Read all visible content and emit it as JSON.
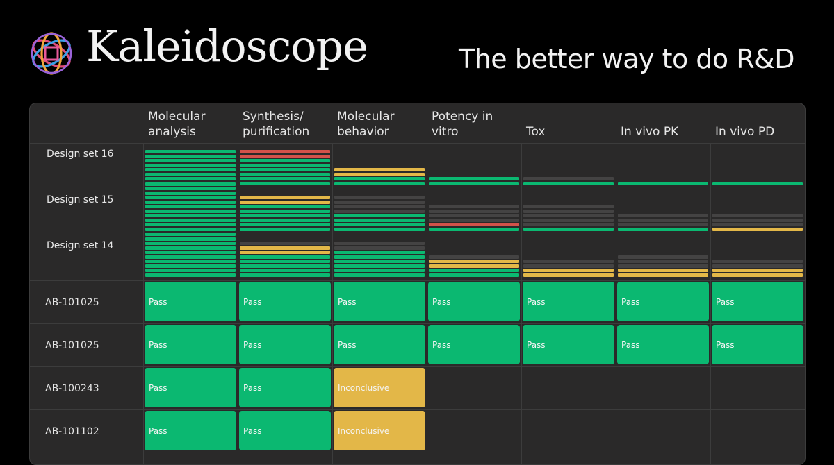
{
  "brand": {
    "name": "Kaleidoscope",
    "tagline": "The better way to do R&D",
    "logo_icon": "kaleidoscope-logo-icon"
  },
  "colors": {
    "pass": "#0bb871",
    "inconclusive": "#e3b748",
    "fail": "#d2524a",
    "pending": "#444343"
  },
  "columns": [
    "Molecular\nanalysis",
    "Synthesis/\npurification",
    "Molecular\nbehavior",
    "Potency in\nvitro",
    "Tox",
    "In vivo PK",
    "In vivo PD"
  ],
  "design_sets": [
    {
      "label": "Design set 16",
      "columns": [
        [
          "g",
          "g",
          "g",
          "g",
          "g",
          "g",
          "g",
          "g"
        ],
        [
          "r",
          "r",
          "g",
          "g",
          "g",
          "g",
          "g",
          "g"
        ],
        [
          "y",
          "y",
          "g",
          "g"
        ],
        [
          "g",
          "g"
        ],
        [
          "d",
          "g"
        ],
        [
          "g"
        ],
        [
          "g"
        ]
      ]
    },
    {
      "label": "Design set 15",
      "columns": [
        [
          "g",
          "g",
          "g",
          "g",
          "g",
          "g",
          "g",
          "g",
          "g",
          "g",
          "g"
        ],
        [
          "y",
          "y",
          "g",
          "g",
          "g",
          "g",
          "g",
          "g"
        ],
        [
          "d",
          "d",
          "d",
          "d",
          "g",
          "g",
          "g",
          "g"
        ],
        [
          "d",
          "d",
          "d",
          "d",
          "r",
          "g"
        ],
        [
          "d",
          "d",
          "d",
          "d",
          "d",
          "g"
        ],
        [
          "d",
          "d",
          "d",
          "g"
        ],
        [
          "d",
          "d",
          "d",
          "y"
        ]
      ]
    },
    {
      "label": "Design set 14",
      "columns": [
        [
          "g",
          "g",
          "g",
          "g",
          "g",
          "g",
          "g",
          "g",
          "g",
          "g"
        ],
        [
          "d",
          "y",
          "y",
          "g",
          "g",
          "g",
          "g",
          "g"
        ],
        [
          "d",
          "d",
          "g",
          "g",
          "g",
          "g",
          "g",
          "g"
        ],
        [
          "d",
          "y",
          "y",
          "g",
          "g"
        ],
        [
          "d",
          "d",
          "y",
          "y"
        ],
        [
          "d",
          "d",
          "d",
          "y",
          "y"
        ],
        [
          "d",
          "d",
          "y",
          "y"
        ]
      ]
    }
  ],
  "molecules": [
    {
      "id": "AB-101025",
      "results": [
        "Pass",
        "Pass",
        "Pass",
        "Pass",
        "Pass",
        "Pass",
        "Pass"
      ]
    },
    {
      "id": "AB-101025",
      "results": [
        "Pass",
        "Pass",
        "Pass",
        "Pass",
        "Pass",
        "Pass",
        "Pass"
      ]
    },
    {
      "id": "AB-100243",
      "results": [
        "Pass",
        "Pass",
        "Inconclusive"
      ]
    },
    {
      "id": "AB-101102",
      "results": [
        "Pass",
        "Pass",
        "Inconclusive"
      ]
    }
  ]
}
